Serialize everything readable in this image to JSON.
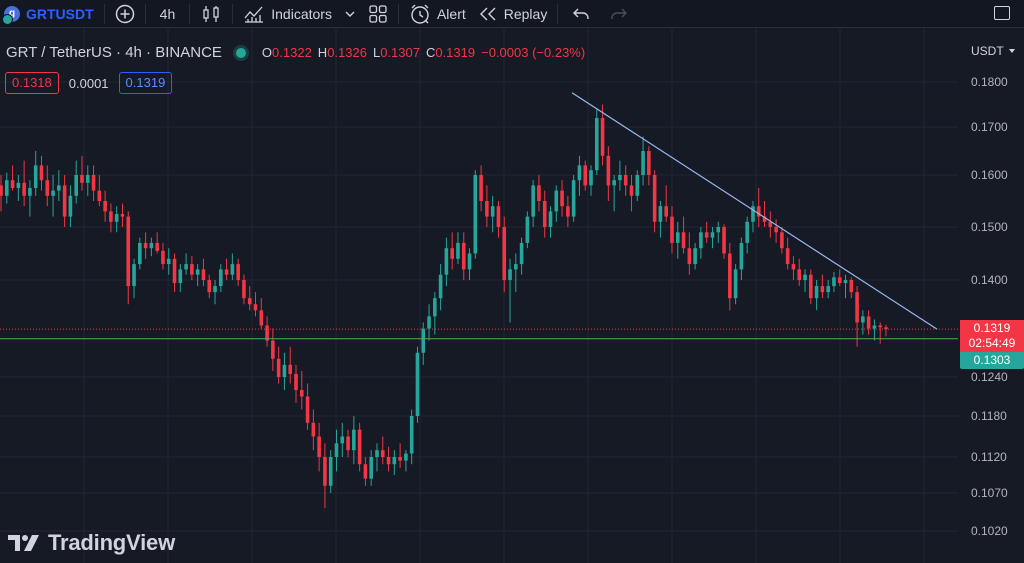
{
  "toolbar": {
    "symbol": "GRTUSDT",
    "interval": "4h",
    "indicators_label": "Indicators",
    "alert_label": "Alert",
    "replay_label": "Replay",
    "icons": [
      "symbol-coin-icon",
      "add-compare-icon",
      "candles-icon",
      "indicators-icon",
      "chevron-down-icon",
      "layouts-icon",
      "alert-clock-icon",
      "replay-icon",
      "undo-icon",
      "redo-icon",
      "fullscreen-icon"
    ]
  },
  "legend": {
    "title": "GRT / TetherUS · 4h · BINANCE",
    "open_label": "O",
    "open": "0.1322",
    "high_label": "H",
    "high": "0.1326",
    "low_label": "L",
    "low": "0.1307",
    "close_label": "C",
    "close": "0.1319",
    "change": "−0.0003 (−0.23%)"
  },
  "quote": {
    "sell": "0.1318",
    "spread": "0.0001",
    "buy": "0.1319"
  },
  "price_scale": {
    "currency": "USDT",
    "ticks": [
      "0.1800",
      "0.1700",
      "0.1600",
      "0.1500",
      "0.1400",
      "0.1240",
      "0.1180",
      "0.1120",
      "0.1070",
      "0.1020"
    ]
  },
  "last_price": {
    "price": "0.1319",
    "countdown": "02:54:49"
  },
  "horizontal_line": {
    "price": "0.1303"
  },
  "watermark": "TradingView",
  "colors": {
    "background": "#161a25",
    "up": "#26a69a",
    "down": "#f23645",
    "trendline": "#9bb8f2",
    "hline": "#4caf50",
    "accent": "#2962ff"
  },
  "chart_data": {
    "type": "candlestick",
    "y_ticks": [
      0.18,
      0.17,
      0.16,
      0.15,
      0.14,
      0.124,
      0.118,
      0.112,
      0.107,
      0.102
    ],
    "trendline": {
      "from": 0.1776,
      "to": 0.1319
    },
    "horizontal_line": 0.1303,
    "last_price": 0.1319,
    "candles": [
      [
        0.158,
        0.16,
        0.153,
        0.156
      ],
      [
        0.156,
        0.1605,
        0.1545,
        0.159
      ],
      [
        0.159,
        0.162,
        0.157,
        0.1575
      ],
      [
        0.1575,
        0.16,
        0.155,
        0.1585
      ],
      [
        0.1585,
        0.163,
        0.154,
        0.156
      ],
      [
        0.156,
        0.159,
        0.152,
        0.1575
      ],
      [
        0.1575,
        0.165,
        0.156,
        0.162
      ],
      [
        0.162,
        0.164,
        0.157,
        0.159
      ],
      [
        0.159,
        0.162,
        0.154,
        0.156
      ],
      [
        0.156,
        0.16,
        0.152,
        0.157
      ],
      [
        0.157,
        0.161,
        0.155,
        0.158
      ],
      [
        0.158,
        0.16,
        0.15,
        0.152
      ],
      [
        0.152,
        0.158,
        0.15,
        0.156
      ],
      [
        0.156,
        0.163,
        0.1545,
        0.16
      ],
      [
        0.16,
        0.164,
        0.157,
        0.1585
      ],
      [
        0.1585,
        0.162,
        0.156,
        0.16
      ],
      [
        0.16,
        0.162,
        0.155,
        0.157
      ],
      [
        0.157,
        0.16,
        0.154,
        0.155
      ],
      [
        0.155,
        0.157,
        0.151,
        0.153
      ],
      [
        0.153,
        0.1545,
        0.149,
        0.151
      ],
      [
        0.151,
        0.154,
        0.149,
        0.1525
      ],
      [
        0.1525,
        0.1545,
        0.15,
        0.152
      ],
      [
        0.152,
        0.153,
        0.136,
        0.139
      ],
      [
        0.139,
        0.144,
        0.137,
        0.143
      ],
      [
        0.143,
        0.148,
        0.142,
        0.147
      ],
      [
        0.147,
        0.149,
        0.144,
        0.146
      ],
      [
        0.146,
        0.148,
        0.1445,
        0.147
      ],
      [
        0.147,
        0.149,
        0.145,
        0.1455
      ],
      [
        0.1455,
        0.147,
        0.142,
        0.143
      ],
      [
        0.143,
        0.146,
        0.141,
        0.144
      ],
      [
        0.144,
        0.145,
        0.138,
        0.1395
      ],
      [
        0.1395,
        0.143,
        0.138,
        0.142
      ],
      [
        0.142,
        0.145,
        0.141,
        0.143
      ],
      [
        0.143,
        0.1445,
        0.14,
        0.141
      ],
      [
        0.141,
        0.143,
        0.139,
        0.142
      ],
      [
        0.142,
        0.144,
        0.139,
        0.14
      ],
      [
        0.14,
        0.141,
        0.137,
        0.138
      ],
      [
        0.138,
        0.14,
        0.136,
        0.139
      ],
      [
        0.139,
        0.143,
        0.138,
        0.142
      ],
      [
        0.142,
        0.144,
        0.14,
        0.141
      ],
      [
        0.141,
        0.145,
        0.14,
        0.143
      ],
      [
        0.143,
        0.144,
        0.139,
        0.14
      ],
      [
        0.14,
        0.141,
        0.136,
        0.137
      ],
      [
        0.137,
        0.139,
        0.135,
        0.136
      ],
      [
        0.136,
        0.138,
        0.134,
        0.135
      ],
      [
        0.135,
        0.137,
        0.132,
        0.1325
      ],
      [
        0.1325,
        0.134,
        0.129,
        0.13
      ],
      [
        0.13,
        0.132,
        0.125,
        0.127
      ],
      [
        0.127,
        0.129,
        0.123,
        0.124
      ],
      [
        0.124,
        0.128,
        0.122,
        0.126
      ],
      [
        0.126,
        0.129,
        0.123,
        0.1245
      ],
      [
        0.1245,
        0.126,
        0.12,
        0.122
      ],
      [
        0.122,
        0.125,
        0.119,
        0.121
      ],
      [
        0.121,
        0.123,
        0.116,
        0.117
      ],
      [
        0.117,
        0.119,
        0.113,
        0.115
      ],
      [
        0.115,
        0.117,
        0.11,
        0.112
      ],
      [
        0.112,
        0.114,
        0.105,
        0.108
      ],
      [
        0.108,
        0.113,
        0.107,
        0.112
      ],
      [
        0.112,
        0.116,
        0.11,
        0.114
      ],
      [
        0.114,
        0.117,
        0.112,
        0.115
      ],
      [
        0.115,
        0.116,
        0.112,
        0.113
      ],
      [
        0.113,
        0.118,
        0.111,
        0.116
      ],
      [
        0.116,
        0.117,
        0.11,
        0.111
      ],
      [
        0.111,
        0.112,
        0.108,
        0.109
      ],
      [
        0.109,
        0.113,
        0.108,
        0.112
      ],
      [
        0.112,
        0.114,
        0.11,
        0.113
      ],
      [
        0.113,
        0.115,
        0.111,
        0.112
      ],
      [
        0.112,
        0.1135,
        0.11,
        0.111
      ],
      [
        0.111,
        0.113,
        0.1095,
        0.112
      ],
      [
        0.112,
        0.114,
        0.1105,
        0.1115
      ],
      [
        0.1115,
        0.113,
        0.11,
        0.1125
      ],
      [
        0.1125,
        0.119,
        0.111,
        0.118
      ],
      [
        0.118,
        0.129,
        0.117,
        0.128
      ],
      [
        0.128,
        0.133,
        0.126,
        0.132
      ],
      [
        0.132,
        0.136,
        0.13,
        0.134
      ],
      [
        0.134,
        0.138,
        0.131,
        0.137
      ],
      [
        0.137,
        0.143,
        0.135,
        0.141
      ],
      [
        0.141,
        0.148,
        0.139,
        0.146
      ],
      [
        0.146,
        0.149,
        0.142,
        0.144
      ],
      [
        0.144,
        0.149,
        0.143,
        0.147
      ],
      [
        0.147,
        0.149,
        0.14,
        0.142
      ],
      [
        0.142,
        0.146,
        0.14,
        0.145
      ],
      [
        0.145,
        0.161,
        0.144,
        0.16
      ],
      [
        0.16,
        0.162,
        0.153,
        0.155
      ],
      [
        0.155,
        0.158,
        0.15,
        0.152
      ],
      [
        0.152,
        0.156,
        0.149,
        0.154
      ],
      [
        0.154,
        0.155,
        0.148,
        0.15
      ],
      [
        0.15,
        0.152,
        0.138,
        0.14
      ],
      [
        0.14,
        0.144,
        0.133,
        0.142
      ],
      [
        0.142,
        0.145,
        0.138,
        0.143
      ],
      [
        0.143,
        0.148,
        0.141,
        0.147
      ],
      [
        0.147,
        0.153,
        0.146,
        0.152
      ],
      [
        0.152,
        0.159,
        0.15,
        0.158
      ],
      [
        0.158,
        0.16,
        0.153,
        0.155
      ],
      [
        0.155,
        0.157,
        0.148,
        0.15
      ],
      [
        0.15,
        0.154,
        0.148,
        0.153
      ],
      [
        0.153,
        0.158,
        0.151,
        0.157
      ],
      [
        0.157,
        0.159,
        0.152,
        0.154
      ],
      [
        0.154,
        0.156,
        0.15,
        0.152
      ],
      [
        0.152,
        0.16,
        0.151,
        0.159
      ],
      [
        0.159,
        0.164,
        0.156,
        0.162
      ],
      [
        0.162,
        0.163,
        0.157,
        0.158
      ],
      [
        0.158,
        0.162,
        0.156,
        0.161
      ],
      [
        0.161,
        0.174,
        0.16,
        0.172
      ],
      [
        0.172,
        0.175,
        0.162,
        0.164
      ],
      [
        0.164,
        0.166,
        0.155,
        0.158
      ],
      [
        0.158,
        0.16,
        0.153,
        0.159
      ],
      [
        0.159,
        0.163,
        0.157,
        0.16
      ],
      [
        0.16,
        0.162,
        0.156,
        0.158
      ],
      [
        0.158,
        0.16,
        0.153,
        0.156
      ],
      [
        0.156,
        0.161,
        0.155,
        0.16
      ],
      [
        0.16,
        0.168,
        0.158,
        0.165
      ],
      [
        0.165,
        0.166,
        0.158,
        0.16
      ],
      [
        0.16,
        0.161,
        0.149,
        0.151
      ],
      [
        0.151,
        0.155,
        0.148,
        0.154
      ],
      [
        0.154,
        0.158,
        0.151,
        0.152
      ],
      [
        0.152,
        0.154,
        0.145,
        0.147
      ],
      [
        0.147,
        0.151,
        0.144,
        0.149
      ],
      [
        0.149,
        0.152,
        0.145,
        0.146
      ],
      [
        0.146,
        0.149,
        0.141,
        0.143
      ],
      [
        0.143,
        0.147,
        0.142,
        0.146
      ],
      [
        0.146,
        0.15,
        0.144,
        0.149
      ],
      [
        0.149,
        0.151,
        0.147,
        0.148
      ],
      [
        0.148,
        0.15,
        0.146,
        0.149
      ],
      [
        0.149,
        0.151,
        0.147,
        0.15
      ],
      [
        0.15,
        0.1505,
        0.144,
        0.145
      ],
      [
        0.145,
        0.147,
        0.135,
        0.137
      ],
      [
        0.137,
        0.143,
        0.136,
        0.142
      ],
      [
        0.142,
        0.148,
        0.14,
        0.147
      ],
      [
        0.147,
        0.152,
        0.145,
        0.151
      ],
      [
        0.151,
        0.155,
        0.149,
        0.154
      ],
      [
        0.154,
        0.1575,
        0.15,
        0.152
      ],
      [
        0.152,
        0.155,
        0.15,
        0.151
      ],
      [
        0.151,
        0.153,
        0.148,
        0.15
      ],
      [
        0.15,
        0.1515,
        0.147,
        0.149
      ],
      [
        0.149,
        0.15,
        0.145,
        0.146
      ],
      [
        0.146,
        0.148,
        0.142,
        0.143
      ],
      [
        0.143,
        0.1445,
        0.14,
        0.142
      ],
      [
        0.142,
        0.144,
        0.139,
        0.14
      ],
      [
        0.14,
        0.142,
        0.138,
        0.141
      ],
      [
        0.141,
        0.142,
        0.136,
        0.137
      ],
      [
        0.137,
        0.14,
        0.135,
        0.139
      ],
      [
        0.139,
        0.141,
        0.137,
        0.138
      ],
      [
        0.138,
        0.14,
        0.137,
        0.139
      ],
      [
        0.139,
        0.1415,
        0.138,
        0.1405
      ],
      [
        0.1405,
        0.142,
        0.139,
        0.1395
      ],
      [
        0.1395,
        0.141,
        0.137,
        0.14
      ],
      [
        0.14,
        0.1405,
        0.137,
        0.138
      ],
      [
        0.138,
        0.139,
        0.129,
        0.133
      ],
      [
        0.133,
        0.135,
        0.131,
        0.134
      ],
      [
        0.134,
        0.135,
        0.131,
        0.132
      ],
      [
        0.132,
        0.1335,
        0.13,
        0.1325
      ],
      [
        0.1325,
        0.133,
        0.1295,
        0.1322
      ],
      [
        0.1322,
        0.1326,
        0.1307,
        0.1319
      ]
    ]
  }
}
